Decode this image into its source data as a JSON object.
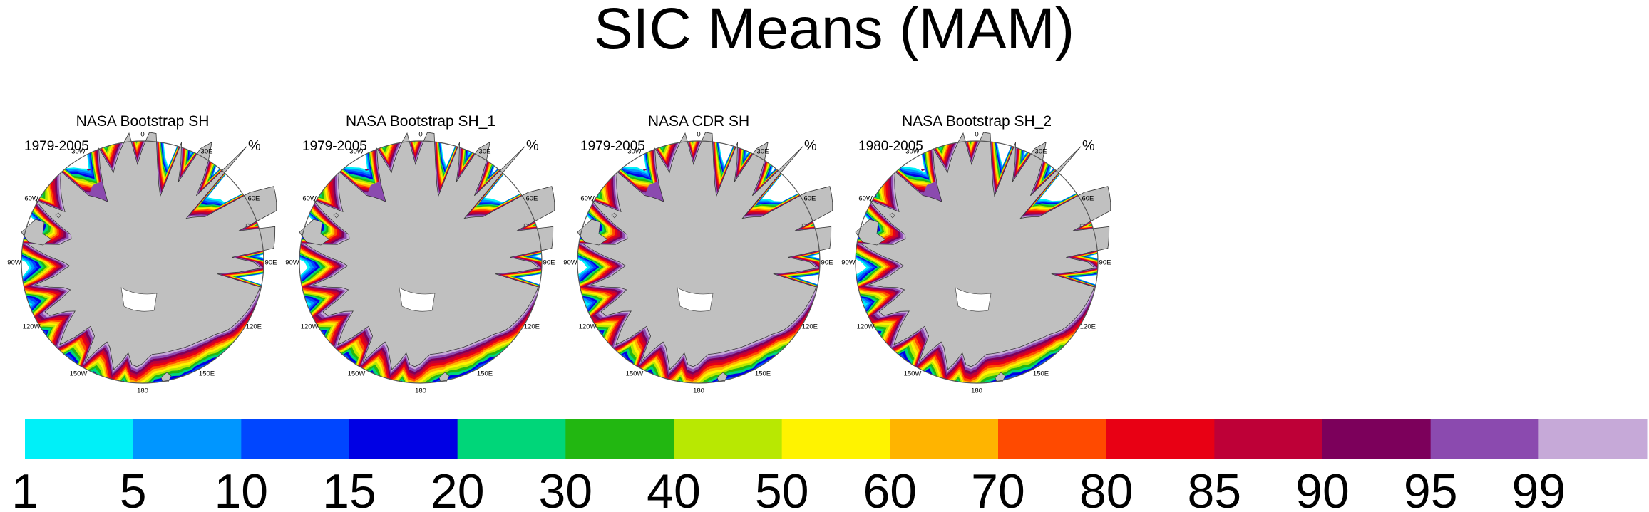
{
  "chart_data": {
    "type": "map",
    "title": "SIC Means (MAM)",
    "projection": "south-polar-stereographic",
    "units": "%",
    "lon_labels": [
      "0",
      "30E",
      "60E",
      "90E",
      "120E",
      "150E",
      "180",
      "150W",
      "120W",
      "90W",
      "60W",
      "30W"
    ],
    "lon_angles": [
      0,
      30,
      60,
      90,
      120,
      150,
      180,
      -150,
      -120,
      -90,
      -60,
      -30
    ],
    "panels": [
      {
        "title": "NASA Bootstrap SH",
        "period": "1979-2005"
      },
      {
        "title": "NASA Bootstrap SH_1",
        "period": "1979-2005"
      },
      {
        "title": "NASA CDR SH",
        "period": "1979-2005"
      },
      {
        "title": "NASA Bootstrap SH_2",
        "period": "1980-2005"
      }
    ],
    "colorbar": {
      "levels": [
        1,
        5,
        10,
        15,
        20,
        30,
        40,
        50,
        60,
        70,
        80,
        85,
        90,
        95,
        99
      ],
      "labels": [
        "1",
        "5",
        "10",
        "15",
        "20",
        "30",
        "40",
        "50",
        "60",
        "70",
        "80",
        "85",
        "90",
        "95",
        "99"
      ],
      "colors": [
        "#00f0f8",
        "#0096ff",
        "#0046ff",
        "#0000e4",
        "#00d679",
        "#22b711",
        "#b8e802",
        "#fff300",
        "#ffb400",
        "#ff4a00",
        "#e80014",
        "#be0037",
        "#7c005b",
        "#8b4aaf",
        "#c6a9d8"
      ]
    },
    "land_color": "#c0c0c0"
  }
}
